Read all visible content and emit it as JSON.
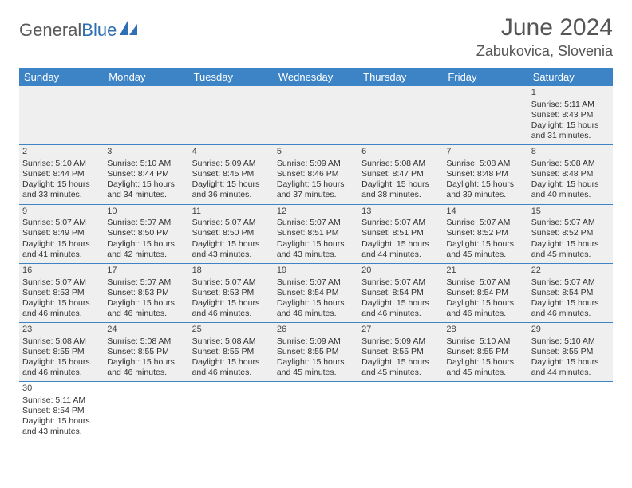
{
  "brand": {
    "part1": "General",
    "part2": "Blue"
  },
  "title": "June 2024",
  "location": "Zabukovica, Slovenia",
  "colors": {
    "header_bg": "#3d84c6",
    "header_fg": "#ffffff",
    "row_bg": "#efefef",
    "border": "#3d84c6",
    "brand_gray": "#5a5a5a",
    "brand_blue": "#2f6fb3"
  },
  "weekdays": [
    "Sunday",
    "Monday",
    "Tuesday",
    "Wednesday",
    "Thursday",
    "Friday",
    "Saturday"
  ],
  "weeks": [
    [
      null,
      null,
      null,
      null,
      null,
      null,
      {
        "n": "1",
        "sr": "5:11 AM",
        "ss": "8:43 PM",
        "dl": "15 hours and 31 minutes."
      }
    ],
    [
      {
        "n": "2",
        "sr": "5:10 AM",
        "ss": "8:44 PM",
        "dl": "15 hours and 33 minutes."
      },
      {
        "n": "3",
        "sr": "5:10 AM",
        "ss": "8:44 PM",
        "dl": "15 hours and 34 minutes."
      },
      {
        "n": "4",
        "sr": "5:09 AM",
        "ss": "8:45 PM",
        "dl": "15 hours and 36 minutes."
      },
      {
        "n": "5",
        "sr": "5:09 AM",
        "ss": "8:46 PM",
        "dl": "15 hours and 37 minutes."
      },
      {
        "n": "6",
        "sr": "5:08 AM",
        "ss": "8:47 PM",
        "dl": "15 hours and 38 minutes."
      },
      {
        "n": "7",
        "sr": "5:08 AM",
        "ss": "8:48 PM",
        "dl": "15 hours and 39 minutes."
      },
      {
        "n": "8",
        "sr": "5:08 AM",
        "ss": "8:48 PM",
        "dl": "15 hours and 40 minutes."
      }
    ],
    [
      {
        "n": "9",
        "sr": "5:07 AM",
        "ss": "8:49 PM",
        "dl": "15 hours and 41 minutes."
      },
      {
        "n": "10",
        "sr": "5:07 AM",
        "ss": "8:50 PM",
        "dl": "15 hours and 42 minutes."
      },
      {
        "n": "11",
        "sr": "5:07 AM",
        "ss": "8:50 PM",
        "dl": "15 hours and 43 minutes."
      },
      {
        "n": "12",
        "sr": "5:07 AM",
        "ss": "8:51 PM",
        "dl": "15 hours and 43 minutes."
      },
      {
        "n": "13",
        "sr": "5:07 AM",
        "ss": "8:51 PM",
        "dl": "15 hours and 44 minutes."
      },
      {
        "n": "14",
        "sr": "5:07 AM",
        "ss": "8:52 PM",
        "dl": "15 hours and 45 minutes."
      },
      {
        "n": "15",
        "sr": "5:07 AM",
        "ss": "8:52 PM",
        "dl": "15 hours and 45 minutes."
      }
    ],
    [
      {
        "n": "16",
        "sr": "5:07 AM",
        "ss": "8:53 PM",
        "dl": "15 hours and 46 minutes."
      },
      {
        "n": "17",
        "sr": "5:07 AM",
        "ss": "8:53 PM",
        "dl": "15 hours and 46 minutes."
      },
      {
        "n": "18",
        "sr": "5:07 AM",
        "ss": "8:53 PM",
        "dl": "15 hours and 46 minutes."
      },
      {
        "n": "19",
        "sr": "5:07 AM",
        "ss": "8:54 PM",
        "dl": "15 hours and 46 minutes."
      },
      {
        "n": "20",
        "sr": "5:07 AM",
        "ss": "8:54 PM",
        "dl": "15 hours and 46 minutes."
      },
      {
        "n": "21",
        "sr": "5:07 AM",
        "ss": "8:54 PM",
        "dl": "15 hours and 46 minutes."
      },
      {
        "n": "22",
        "sr": "5:07 AM",
        "ss": "8:54 PM",
        "dl": "15 hours and 46 minutes."
      }
    ],
    [
      {
        "n": "23",
        "sr": "5:08 AM",
        "ss": "8:55 PM",
        "dl": "15 hours and 46 minutes."
      },
      {
        "n": "24",
        "sr": "5:08 AM",
        "ss": "8:55 PM",
        "dl": "15 hours and 46 minutes."
      },
      {
        "n": "25",
        "sr": "5:08 AM",
        "ss": "8:55 PM",
        "dl": "15 hours and 46 minutes."
      },
      {
        "n": "26",
        "sr": "5:09 AM",
        "ss": "8:55 PM",
        "dl": "15 hours and 45 minutes."
      },
      {
        "n": "27",
        "sr": "5:09 AM",
        "ss": "8:55 PM",
        "dl": "15 hours and 45 minutes."
      },
      {
        "n": "28",
        "sr": "5:10 AM",
        "ss": "8:55 PM",
        "dl": "15 hours and 45 minutes."
      },
      {
        "n": "29",
        "sr": "5:10 AM",
        "ss": "8:55 PM",
        "dl": "15 hours and 44 minutes."
      }
    ],
    [
      {
        "n": "30",
        "sr": "5:11 AM",
        "ss": "8:54 PM",
        "dl": "15 hours and 43 minutes."
      },
      null,
      null,
      null,
      null,
      null,
      null
    ]
  ],
  "labels": {
    "sunrise": "Sunrise:",
    "sunset": "Sunset:",
    "daylight": "Daylight:"
  }
}
